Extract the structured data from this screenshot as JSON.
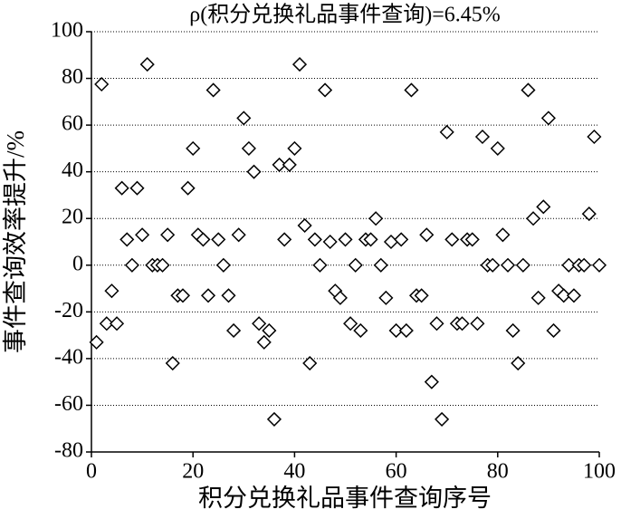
{
  "chart_data": {
    "type": "scatter",
    "title": "ρ(积分兑换礼品事件查询)=6.45%",
    "x_label": "积分兑换礼品事件查询序号",
    "y_label": "事件查询效率提升/%",
    "x": [
      1,
      2,
      3,
      4,
      5,
      6,
      7,
      8,
      9,
      10,
      11,
      12,
      13,
      14,
      15,
      16,
      17,
      18,
      19,
      20,
      21,
      22,
      23,
      24,
      25,
      26,
      27,
      28,
      29,
      30,
      31,
      32,
      33,
      34,
      35,
      36,
      37,
      38,
      39,
      40,
      41,
      42,
      43,
      44,
      45,
      46,
      47,
      48,
      49,
      50,
      51,
      52,
      53,
      54,
      55,
      56,
      57,
      58,
      59,
      60,
      61,
      62,
      63,
      64,
      65,
      66,
      67,
      68,
      69,
      70,
      71,
      72,
      73,
      74,
      75,
      76,
      77,
      78,
      79,
      80,
      81,
      82,
      83,
      84,
      85,
      86,
      87,
      88,
      89,
      90,
      91,
      92,
      93,
      94,
      95,
      96,
      97,
      98,
      99,
      100
    ],
    "values": [
      -33,
      77.5,
      -25,
      -11,
      -25,
      33,
      11,
      0,
      33,
      13,
      86,
      0,
      0,
      0,
      13,
      -42,
      -13,
      -13,
      33,
      50,
      13,
      11,
      -13,
      75,
      11,
      0,
      -13,
      -28,
      13,
      63,
      50,
      40,
      -25,
      -33,
      -28,
      -66,
      43,
      11,
      43,
      50,
      86,
      17,
      -42,
      11,
      0,
      75,
      10,
      -11,
      -14,
      11,
      -25,
      0,
      -28,
      11,
      11,
      20,
      0,
      -14,
      10,
      -28,
      11,
      -28,
      75,
      -13,
      -13,
      13,
      -50,
      -25,
      -66,
      57,
      11,
      -25,
      -25,
      11,
      11,
      -25,
      55,
      0,
      0,
      50,
      13,
      0,
      -28,
      -42,
      0,
      75,
      20,
      -14,
      25,
      63,
      -28,
      -11,
      -13,
      0,
      -13,
      0,
      0,
      22,
      55,
      0
    ],
    "xlim": [
      0,
      100
    ],
    "xticks": [
      0,
      20,
      40,
      60,
      80,
      100
    ],
    "ylim": [
      -80,
      100
    ],
    "yticks": [
      -80,
      -60,
      -40,
      -20,
      0,
      20,
      40,
      60,
      80,
      100
    ],
    "grid": true,
    "marker": "diamond",
    "color": "#000000"
  }
}
